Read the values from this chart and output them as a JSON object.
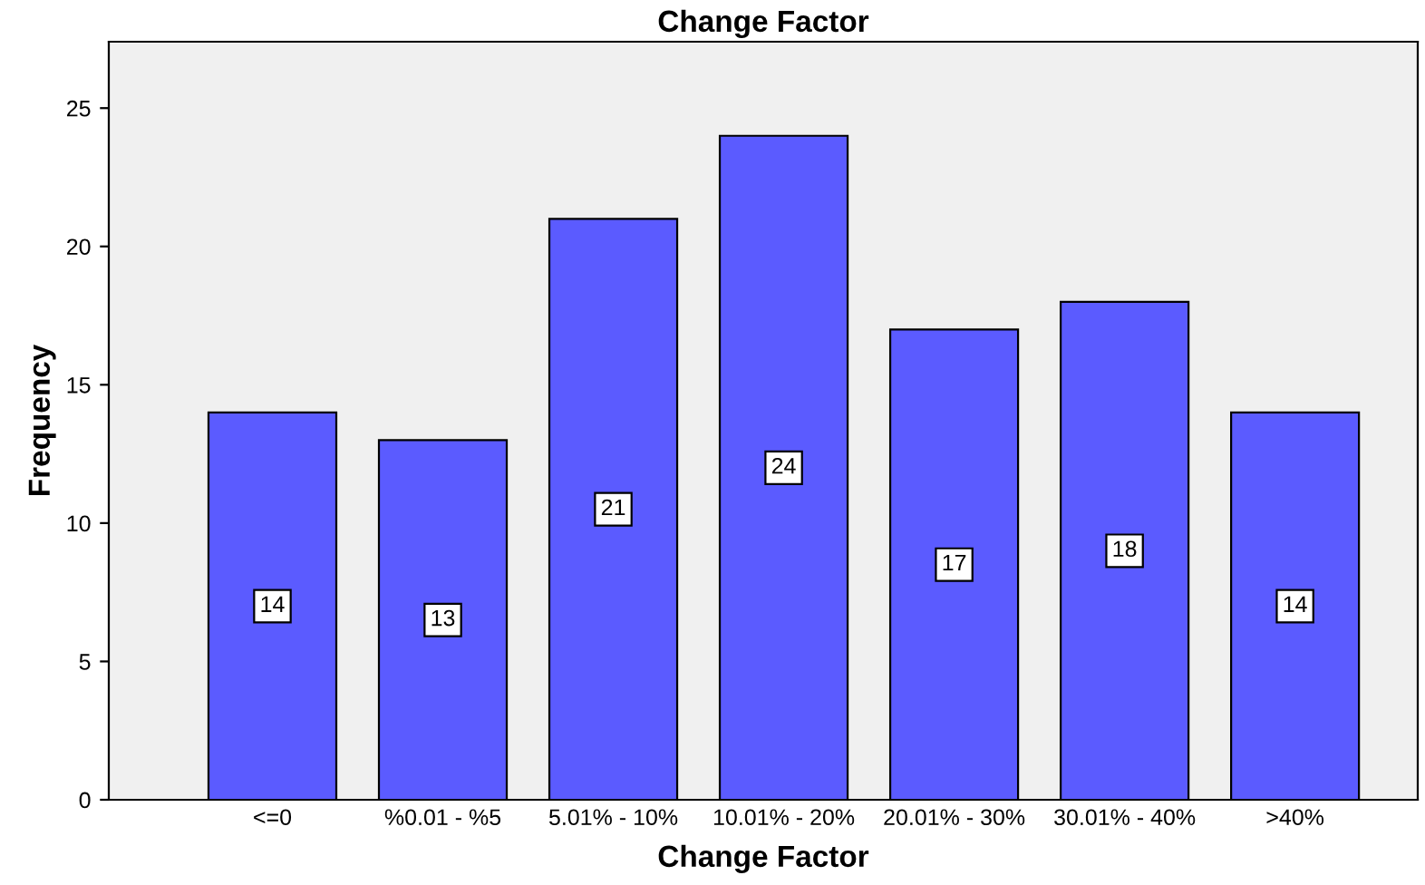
{
  "chart_data": {
    "type": "bar",
    "title": "Change Factor",
    "xlabel": "Change Factor",
    "ylabel": "Frequency",
    "categories": [
      "<=0",
      "%0.01 - %5",
      "5.01% - 10%",
      "10.01% - 20%",
      "20.01% - 30%",
      "30.01% - 40%",
      ">40%"
    ],
    "values": [
      14,
      13,
      21,
      24,
      17,
      18,
      14
    ],
    "color": "#5b5bff",
    "ylim": [
      0,
      27.4
    ],
    "yticks": [
      0,
      5,
      10,
      15,
      20,
      25
    ],
    "data_labels": true,
    "grid": false,
    "legend": false
  }
}
